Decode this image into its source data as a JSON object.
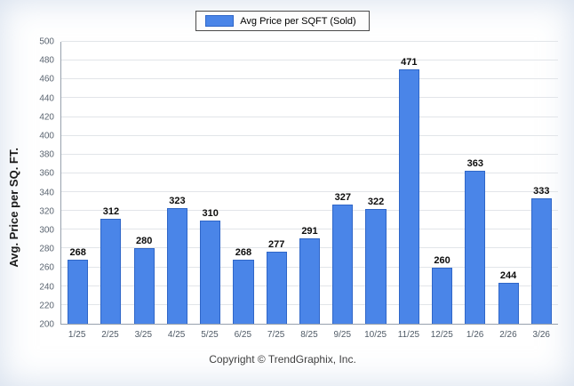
{
  "legend": {
    "label": "Avg Price per SQFT (Sold)"
  },
  "footer": {
    "copyright": "Copyright © TrendGraphix, Inc."
  },
  "colors": {
    "bar": "#4a85e8",
    "bar_border": "#2f66c8",
    "grid": "#e2e5e9",
    "axis": "#97a1ad"
  },
  "chart_data": {
    "type": "bar",
    "title": "",
    "xlabel": "",
    "ylabel": "Avg. Price per SQ. FT.",
    "ylim": [
      200,
      500
    ],
    "ytick_step": 20,
    "grid": true,
    "legend_position": "top-center",
    "categories": [
      "1/25",
      "2/25",
      "3/25",
      "4/25",
      "5/25",
      "6/25",
      "7/25",
      "8/25",
      "9/25",
      "10/25",
      "11/25",
      "12/25",
      "1/26",
      "2/26",
      "3/26"
    ],
    "values": [
      268,
      312,
      280,
      323,
      310,
      268,
      277,
      291,
      327,
      322,
      471,
      260,
      363,
      244,
      333
    ]
  }
}
